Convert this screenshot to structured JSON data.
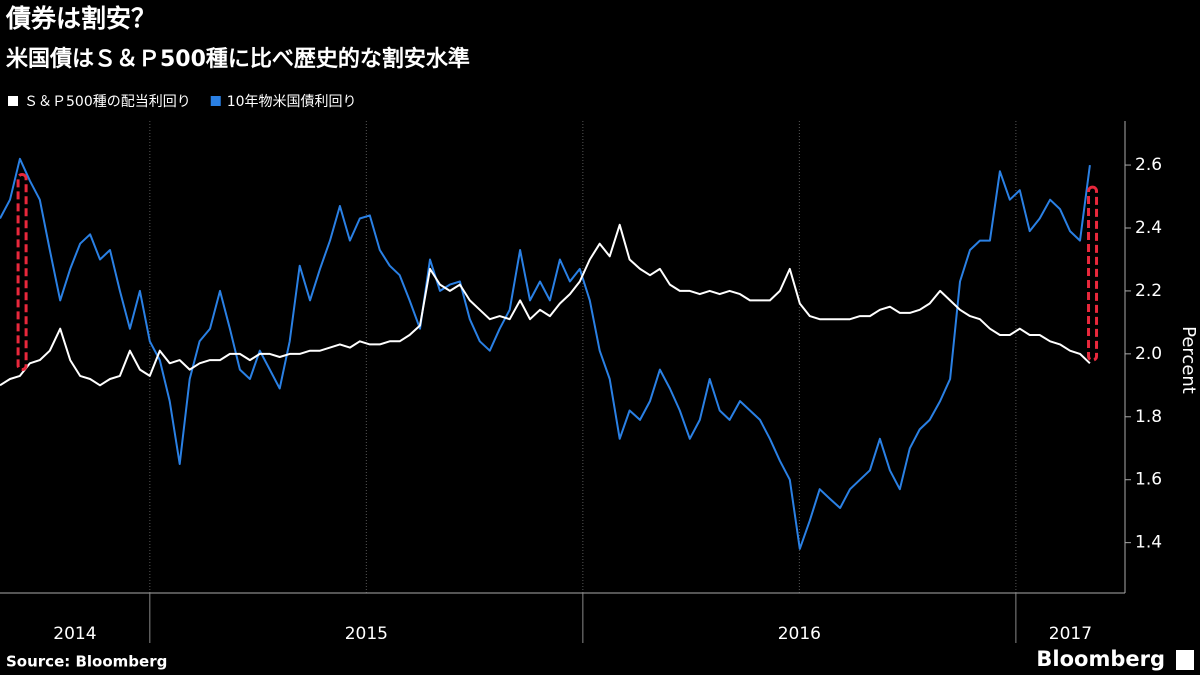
{
  "chart_data": {
    "type": "line",
    "title": "債券は割安？",
    "subtitle": "米国債はＳ＆Ｐ500種に比べ歴史的な割安水準",
    "y_label": "Percent",
    "source": "Source: Bloomberg",
    "brand": "Bloomberg",
    "x": [
      2014.654,
      2014.677,
      2014.7,
      2014.723,
      2014.746,
      2014.769,
      2014.793,
      2014.816,
      2014.839,
      2014.862,
      2014.885,
      2014.908,
      2014.931,
      2014.954,
      2014.977,
      2015.0,
      2015.023,
      2015.046,
      2015.069,
      2015.092,
      2015.115,
      2015.139,
      2015.162,
      2015.185,
      2015.208,
      2015.231,
      2015.254,
      2015.277,
      2015.3,
      2015.323,
      2015.346,
      2015.37,
      2015.393,
      2015.416,
      2015.439,
      2015.462,
      2015.485,
      2015.508,
      2015.531,
      2015.554,
      2015.577,
      2015.6,
      2015.624,
      2015.647,
      2015.67,
      2015.693,
      2015.716,
      2015.739,
      2015.762,
      2015.785,
      2015.808,
      2015.831,
      2015.855,
      2015.878,
      2015.901,
      2015.924,
      2015.947,
      2015.97,
      2015.993,
      2016.016,
      2016.039,
      2016.062,
      2016.085,
      2016.108,
      2016.132,
      2016.155,
      2016.178,
      2016.201,
      2016.224,
      2016.247,
      2016.27,
      2016.293,
      2016.316,
      2016.339,
      2016.363,
      2016.386,
      2016.409,
      2016.432,
      2016.455,
      2016.478,
      2016.501,
      2016.524,
      2016.547,
      2016.57,
      2016.594,
      2016.617,
      2016.64,
      2016.663,
      2016.686,
      2016.709,
      2016.732,
      2016.755,
      2016.778,
      2016.801,
      2016.825,
      2016.848,
      2016.871,
      2016.894,
      2016.917,
      2016.94,
      2016.963,
      2016.986,
      2017.009,
      2017.032,
      2017.055,
      2017.079,
      2017.102,
      2017.125,
      2017.148,
      2017.171
    ],
    "series": [
      {
        "name": "Ｓ＆Ｐ500種の配当利回り",
        "color": "#ffffff",
        "values": [
          1.9,
          1.92,
          1.93,
          1.97,
          1.98,
          2.01,
          2.08,
          1.98,
          1.93,
          1.92,
          1.9,
          1.92,
          1.93,
          2.01,
          1.95,
          1.93,
          2.01,
          1.97,
          1.98,
          1.95,
          1.97,
          1.98,
          1.98,
          2.0,
          2.0,
          1.98,
          2.0,
          2.0,
          1.99,
          2.0,
          2.0,
          2.01,
          2.01,
          2.02,
          2.03,
          2.02,
          2.04,
          2.03,
          2.03,
          2.04,
          2.04,
          2.06,
          2.09,
          2.27,
          2.22,
          2.2,
          2.22,
          2.17,
          2.14,
          2.11,
          2.12,
          2.11,
          2.17,
          2.11,
          2.14,
          2.12,
          2.16,
          2.19,
          2.23,
          2.3,
          2.35,
          2.31,
          2.41,
          2.3,
          2.27,
          2.25,
          2.27,
          2.22,
          2.2,
          2.2,
          2.19,
          2.2,
          2.19,
          2.2,
          2.19,
          2.17,
          2.17,
          2.17,
          2.2,
          2.27,
          2.16,
          2.12,
          2.11,
          2.11,
          2.11,
          2.11,
          2.12,
          2.12,
          2.14,
          2.15,
          2.13,
          2.13,
          2.14,
          2.16,
          2.2,
          2.17,
          2.14,
          2.12,
          2.11,
          2.08,
          2.06,
          2.06,
          2.08,
          2.06,
          2.06,
          2.04,
          2.03,
          2.01,
          2.0,
          1.97
        ]
      },
      {
        "name": "10年物米国債利回り",
        "color": "#2a80e4",
        "values": [
          2.43,
          2.49,
          2.62,
          2.55,
          2.49,
          2.33,
          2.17,
          2.27,
          2.35,
          2.38,
          2.3,
          2.33,
          2.2,
          2.08,
          2.2,
          2.04,
          1.98,
          1.85,
          1.65,
          1.92,
          2.04,
          2.08,
          2.2,
          2.08,
          1.95,
          1.92,
          2.01,
          1.95,
          1.89,
          2.04,
          2.28,
          2.17,
          2.27,
          2.36,
          2.47,
          2.36,
          2.43,
          2.44,
          2.33,
          2.28,
          2.25,
          2.17,
          2.08,
          2.3,
          2.2,
          2.22,
          2.23,
          2.11,
          2.04,
          2.01,
          2.08,
          2.14,
          2.33,
          2.17,
          2.23,
          2.17,
          2.3,
          2.23,
          2.27,
          2.17,
          2.01,
          1.92,
          1.73,
          1.82,
          1.79,
          1.85,
          1.95,
          1.89,
          1.82,
          1.73,
          1.79,
          1.92,
          1.82,
          1.79,
          1.85,
          1.82,
          1.79,
          1.73,
          1.66,
          1.6,
          1.38,
          1.47,
          1.57,
          1.54,
          1.51,
          1.57,
          1.6,
          1.63,
          1.73,
          1.63,
          1.57,
          1.7,
          1.76,
          1.79,
          1.85,
          1.92,
          2.23,
          2.33,
          2.36,
          2.36,
          2.58,
          2.49,
          2.52,
          2.39,
          2.43,
          2.49,
          2.46,
          2.39,
          2.36,
          2.6
        ]
      }
    ],
    "highlights": [
      {
        "x": 2014.705,
        "from": 1.95,
        "to": 2.57
      },
      {
        "x": 2017.177,
        "from": 1.98,
        "to": 2.53
      }
    ],
    "highlight_color": "#e8283c",
    "xlim": [
      2014.654,
      2017.252
    ],
    "xticks": [
      2015,
      2016,
      2017
    ],
    "xgrid": [
      2015,
      2015.5,
      2016,
      2016.5,
      2017
    ],
    "year_labels": [
      "2014",
      "2015",
      "2016",
      "2017"
    ],
    "ylim": [
      1.24,
      2.74
    ],
    "yticks": [
      1.4,
      1.6,
      1.8,
      2.0,
      2.2,
      2.4,
      2.6
    ],
    "ytick_labels": [
      "1.4",
      "1.6",
      "1.8",
      "2.0",
      "2.2",
      "2.4",
      "2.6"
    ],
    "grid": true
  }
}
